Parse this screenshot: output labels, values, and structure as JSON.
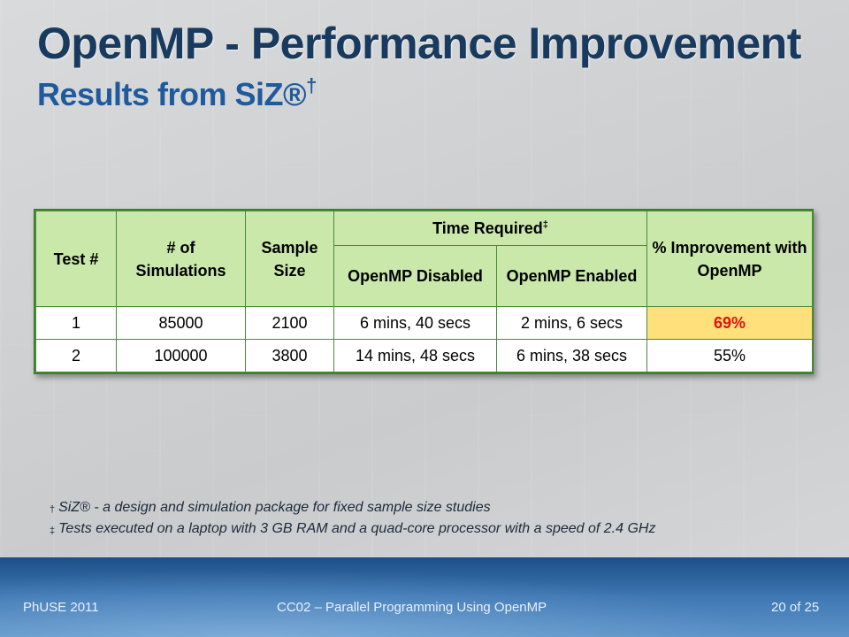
{
  "slide": {
    "title": "OpenMP - Performance Improvement",
    "subtitle": "Results from SiZ®",
    "subtitle_mark": "†"
  },
  "table": {
    "headers": {
      "test": "Test #",
      "simulations": "# of Simulations",
      "sample_size": "Sample Size",
      "time_required": "Time Required",
      "time_required_mark": "‡",
      "improvement": "% Improvement with OpenMP",
      "disabled": "OpenMP Disabled",
      "enabled": "OpenMP Enabled"
    },
    "rows": [
      {
        "test": "1",
        "simulations": "85000",
        "sample_size": "2100",
        "disabled": "6 mins, 40 secs",
        "enabled": "2 mins, 6 secs",
        "improvement": "69%"
      },
      {
        "test": "2",
        "simulations": "100000",
        "sample_size": "3800",
        "disabled": "14 mins, 48 secs",
        "enabled": "6 mins, 38 secs",
        "improvement": "55%"
      }
    ]
  },
  "footnotes": [
    {
      "mark": "†",
      "text": "SiZ® - a design and simulation package for fixed sample size studies"
    },
    {
      "mark": "‡",
      "text": "Tests executed on a laptop with 3 GB RAM and a quad-core processor with a speed of 2.4 GHz"
    }
  ],
  "footer": {
    "left": "PhUSE 2011",
    "center": "CC02 – Parallel Programming Using OpenMP",
    "right": "20 of 25"
  },
  "colors": {
    "title": "#173a5e",
    "subtitle": "#1e5a9c",
    "header_fill": "#c9e8a9",
    "table_border": "#3f7f2f",
    "highlight_fill": "#ffe07a",
    "highlight_text": "#e01010",
    "footer_band": "#2a62a0"
  }
}
